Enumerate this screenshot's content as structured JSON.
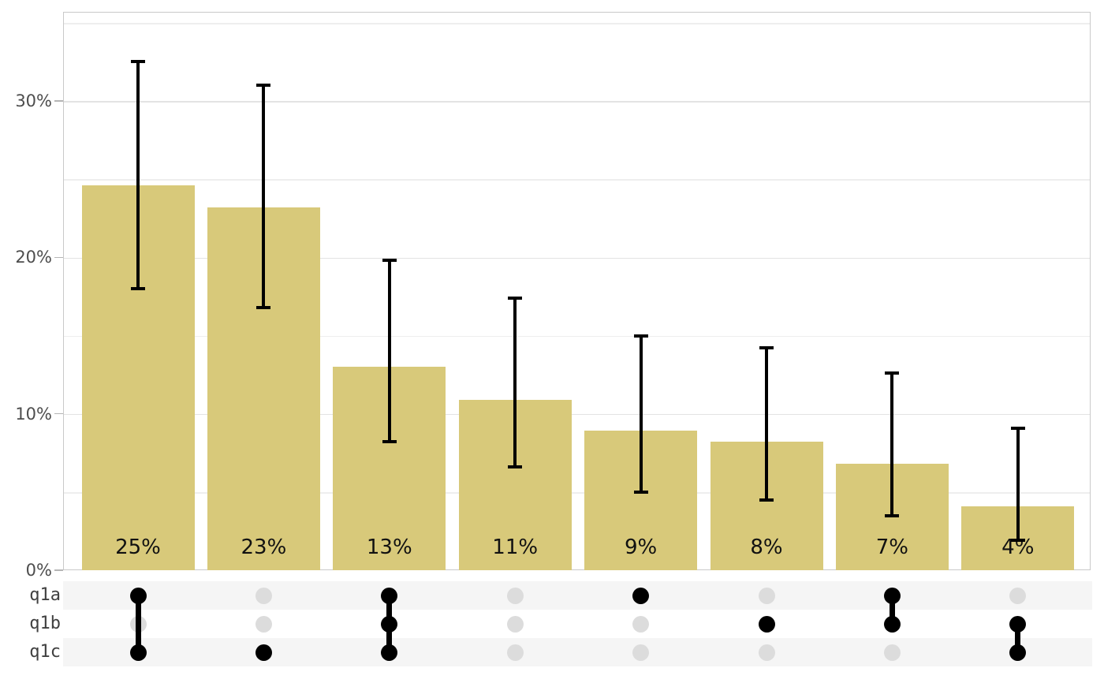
{
  "chart_data": {
    "type": "bar",
    "variant": "upset-plot-with-error-bars",
    "title": "",
    "xlabel": "",
    "ylabel": "",
    "y_axis": {
      "tick_labels": [
        "0%",
        "10%",
        "20%",
        "30%"
      ],
      "tick_values": [
        0,
        10,
        20,
        30
      ],
      "minor_gridline_values": [
        5,
        15,
        25,
        35
      ],
      "ylim": [
        0,
        35.7
      ],
      "grid": "on",
      "unit": "percent"
    },
    "sets": [
      "q1a",
      "q1b",
      "q1c"
    ],
    "bars": [
      {
        "label": "25%",
        "value": 24.6,
        "ci_low": 18.0,
        "ci_high": 32.5,
        "membership": [
          1,
          0,
          1
        ],
        "sets_active": [
          "q1a",
          "q1c"
        ]
      },
      {
        "label": "23%",
        "value": 23.2,
        "ci_low": 16.8,
        "ci_high": 31.0,
        "membership": [
          0,
          0,
          1
        ],
        "sets_active": [
          "q1c"
        ]
      },
      {
        "label": "13%",
        "value": 13.0,
        "ci_low": 8.2,
        "ci_high": 19.8,
        "membership": [
          1,
          1,
          1
        ],
        "sets_active": [
          "q1a",
          "q1b",
          "q1c"
        ]
      },
      {
        "label": "11%",
        "value": 10.9,
        "ci_low": 6.6,
        "ci_high": 17.4,
        "membership": [
          0,
          0,
          0
        ],
        "sets_active": []
      },
      {
        "label": "9%",
        "value": 8.9,
        "ci_low": 5.0,
        "ci_high": 15.0,
        "membership": [
          1,
          0,
          0
        ],
        "sets_active": [
          "q1a"
        ]
      },
      {
        "label": "8%",
        "value": 8.2,
        "ci_low": 4.5,
        "ci_high": 14.2,
        "membership": [
          0,
          1,
          0
        ],
        "sets_active": [
          "q1b"
        ]
      },
      {
        "label": "7%",
        "value": 6.8,
        "ci_low": 3.5,
        "ci_high": 12.6,
        "membership": [
          1,
          1,
          0
        ],
        "sets_active": [
          "q1a",
          "q1b"
        ]
      },
      {
        "label": "4%",
        "value": 4.1,
        "ci_low": 1.9,
        "ci_high": 9.1,
        "membership": [
          0,
          1,
          1
        ],
        "sets_active": [
          "q1b",
          "q1c"
        ]
      }
    ],
    "colors": {
      "bar_fill": "#d8c97a",
      "error_bar": "#000000",
      "dot_active": "#000000",
      "dot_inactive": "#dcdcdc",
      "matrix_stripe": "#f5f5f5",
      "grid_major": "#e3e3e3",
      "grid_minor": "#eeeeee",
      "panel_border": "#c9c9c9",
      "tick_label_text": "#4d4d4d",
      "bar_label_text": "#111111"
    },
    "legend": {
      "visible": false
    }
  }
}
